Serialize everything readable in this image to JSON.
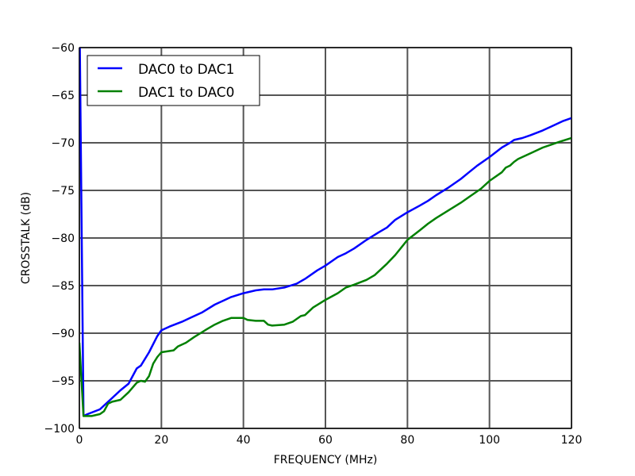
{
  "chart_data": {
    "type": "line",
    "title": "",
    "xlabel": "FREQUENCY (MHz)",
    "ylabel": "CROSSTALK (dB)",
    "xlim": [
      0,
      120
    ],
    "ylim": [
      -100,
      -60
    ],
    "xticks": [
      "0",
      "20",
      "40",
      "60",
      "80",
      "100",
      "120"
    ],
    "yticks": [
      "−60",
      "−65",
      "−70",
      "−75",
      "−80",
      "−85",
      "−90",
      "−95",
      "−100"
    ],
    "xtick_values": [
      0,
      20,
      40,
      60,
      80,
      100,
      120
    ],
    "ytick_values": [
      -60,
      -65,
      -70,
      -75,
      -80,
      -85,
      -90,
      -95,
      -100
    ],
    "grid": true,
    "legend_position": "top-left",
    "series": [
      {
        "name": "DAC0 to DAC1",
        "color": "#0000ff",
        "x": [
          0,
          1,
          2,
          5,
          7,
          10,
          12,
          14,
          15,
          17,
          19,
          20,
          22,
          25,
          27,
          30,
          33,
          35,
          37,
          40,
          43,
          45,
          47,
          50,
          53,
          55,
          58,
          60,
          63,
          65,
          67,
          70,
          73,
          75,
          77,
          80,
          83,
          85,
          87,
          90,
          93,
          95,
          97,
          100,
          103,
          105,
          106,
          108,
          110,
          113,
          115,
          118,
          120
        ],
        "y": [
          -55,
          -98.7,
          -98.5,
          -98,
          -97.2,
          -96,
          -95.3,
          -93.7,
          -93.4,
          -92,
          -90.3,
          -89.7,
          -89.3,
          -88.8,
          -88.4,
          -87.8,
          -87,
          -86.6,
          -86.2,
          -85.8,
          -85.5,
          -85.4,
          -85.4,
          -85.2,
          -84.8,
          -84.3,
          -83.4,
          -82.9,
          -82,
          -81.6,
          -81.1,
          -80.2,
          -79.4,
          -78.9,
          -78.1,
          -77.3,
          -76.6,
          -76.1,
          -75.5,
          -74.7,
          -73.8,
          -73.1,
          -72.4,
          -71.5,
          -70.5,
          -70,
          -69.7,
          -69.5,
          -69.2,
          -68.7,
          -68.3,
          -67.7,
          -67.4
        ]
      },
      {
        "name": "DAC1 to DAC0",
        "color": "#008000",
        "x": [
          0,
          1,
          3,
          5,
          6,
          7,
          8,
          10,
          12,
          14,
          15,
          16,
          17,
          18,
          19,
          20,
          23,
          24,
          26,
          28,
          31,
          33,
          35,
          37,
          40,
          41,
          43,
          45,
          46,
          47,
          50,
          52,
          54,
          55,
          57,
          60,
          63,
          65,
          67,
          70,
          72,
          75,
          77,
          80,
          83,
          85,
          87,
          90,
          93,
          95,
          98,
          100,
          103,
          104,
          105,
          106,
          107,
          110,
          113,
          115,
          117,
          120
        ],
        "y": [
          -91,
          -98.7,
          -98.7,
          -98.5,
          -98.2,
          -97.4,
          -97.2,
          -97,
          -96.2,
          -95.2,
          -95,
          -95.1,
          -94.5,
          -93.2,
          -92.5,
          -92,
          -91.8,
          -91.4,
          -91,
          -90.4,
          -89.6,
          -89.1,
          -88.7,
          -88.4,
          -88.4,
          -88.6,
          -88.7,
          -88.7,
          -89.1,
          -89.2,
          -89.1,
          -88.8,
          -88.2,
          -88.1,
          -87.3,
          -86.5,
          -85.8,
          -85.2,
          -84.9,
          -84.4,
          -83.9,
          -82.7,
          -81.8,
          -80.2,
          -79.2,
          -78.5,
          -77.9,
          -77.1,
          -76.3,
          -75.7,
          -74.8,
          -74,
          -73.1,
          -72.6,
          -72.4,
          -72,
          -71.7,
          -71.1,
          -70.5,
          -70.2,
          -69.9,
          -69.5
        ]
      }
    ]
  }
}
